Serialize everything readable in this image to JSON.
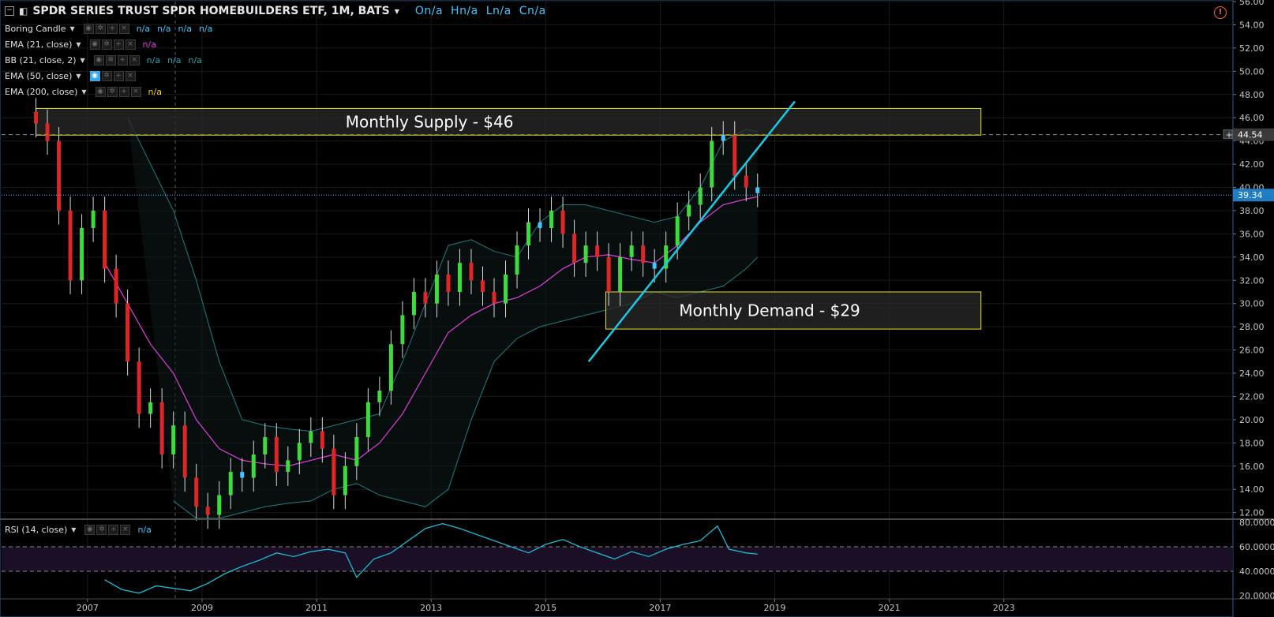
{
  "header": {
    "title": "SPDR SERIES TRUST SPDR HOMEBUILDERS ETF, 1M, BATS",
    "ohlc": [
      "On/a",
      "Hn/a",
      "Ln/a",
      "Cn/a"
    ]
  },
  "indicators": [
    {
      "label": "Boring Candle",
      "values": [
        "n/a",
        "n/a",
        "n/a",
        "n/a"
      ],
      "value_color": "#3fc7ff"
    },
    {
      "label": "EMA (21, close)",
      "values": [
        "n/a"
      ],
      "value_color": "#e040e0"
    },
    {
      "label": "BB (21, close, 2)",
      "values": [
        "n/a",
        "n/a",
        "n/a"
      ],
      "value_color": "#2aa3a8"
    },
    {
      "label": "EMA (50, close)",
      "values": [],
      "value_color": "#ffffff"
    },
    {
      "label": "EMA (200, close)",
      "values": [
        "n/a"
      ],
      "value_color": "#ffd700"
    }
  ],
  "rsi_label": "RSI (14, close)",
  "rsi_value": "n/a",
  "price_labels": {
    "current": "39.34",
    "level": "44.54"
  },
  "colors": {
    "up": "#3ddc3d",
    "down": "#e02525",
    "neutral": "#3fc7ff",
    "ema21": "#e040e0",
    "bb": "#1f7e84",
    "trendline": "#19c9e6",
    "zone_border": "#e6e61a",
    "rsi": "#19c9e6",
    "rsi_band": "#1a0f24"
  },
  "chart_data": {
    "type": "line",
    "title": "SPDR SERIES TRUST SPDR HOMEBUILDERS ETF, 1M, BATS",
    "ylim": [
      11.5,
      56
    ],
    "y_ticks": [
      "56.00",
      "54.00",
      "52.00",
      "50.00",
      "48.00",
      "46.00",
      "44.00",
      "42.00",
      "40.00",
      "38.00",
      "36.00",
      "34.00",
      "32.00",
      "30.00",
      "28.00",
      "26.00",
      "24.00",
      "22.00",
      "20.00",
      "18.00",
      "16.00",
      "14.00",
      "12.00"
    ],
    "x_ticks": [
      "2007",
      "2009",
      "2011",
      "2013",
      "2015",
      "2017",
      "2019",
      "2021",
      "2023"
    ],
    "x_tick_years": [
      2007,
      2009,
      2011,
      2013,
      2015,
      2017,
      2019,
      2021,
      2023
    ],
    "xlim": [
      2005.5,
      2027.0
    ],
    "series": [
      {
        "name": "Price",
        "x": [
          2006.1,
          2006.3,
          2006.5,
          2006.7,
          2006.9,
          2007.1,
          2007.3,
          2007.5,
          2007.7,
          2007.9,
          2008.1,
          2008.3,
          2008.5,
          2008.7,
          2008.9,
          2009.1,
          2009.3,
          2009.5,
          2009.7,
          2009.9,
          2010.1,
          2010.3,
          2010.5,
          2010.7,
          2010.9,
          2011.1,
          2011.3,
          2011.5,
          2011.7,
          2011.9,
          2012.1,
          2012.3,
          2012.5,
          2012.7,
          2012.9,
          2013.1,
          2013.3,
          2013.5,
          2013.7,
          2013.9,
          2014.1,
          2014.3,
          2014.5,
          2014.7,
          2014.9,
          2015.1,
          2015.3,
          2015.5,
          2015.7,
          2015.9,
          2016.1,
          2016.3,
          2016.5,
          2016.7,
          2016.9,
          2017.1,
          2017.3,
          2017.5,
          2017.7,
          2017.9,
          2018.1,
          2018.3,
          2018.5,
          2018.7
        ],
        "values": [
          45.5,
          44.0,
          38.0,
          32.0,
          36.5,
          38.0,
          33.0,
          30.0,
          25.0,
          20.5,
          21.5,
          17.0,
          19.5,
          15.0,
          12.5,
          11.8,
          13.5,
          15.5,
          15.0,
          17.0,
          18.5,
          15.5,
          16.5,
          18.0,
          19.0,
          17.5,
          13.5,
          16.0,
          18.5,
          21.5,
          22.5,
          26.5,
          29.0,
          31.0,
          30.0,
          32.5,
          31.0,
          33.5,
          32.0,
          31.0,
          30.0,
          32.5,
          35.0,
          37.0,
          36.5,
          38.0,
          36.0,
          33.5,
          35.0,
          34.0,
          31.0,
          34.0,
          35.0,
          33.5,
          33.0,
          35.0,
          37.5,
          38.5,
          40.0,
          44.0,
          44.5,
          41.0,
          40.0,
          39.5
        ]
      },
      {
        "name": "EMA (21, close)",
        "x": [
          2007.3,
          2007.7,
          2008.1,
          2008.5,
          2008.9,
          2009.3,
          2009.7,
          2010.1,
          2010.5,
          2010.9,
          2011.3,
          2011.7,
          2012.1,
          2012.5,
          2012.9,
          2013.3,
          2013.7,
          2014.1,
          2014.5,
          2014.9,
          2015.3,
          2015.7,
          2016.1,
          2016.5,
          2016.9,
          2017.3,
          2017.7,
          2018.1,
          2018.5,
          2018.7
        ],
        "values": [
          33.5,
          30.0,
          26.5,
          24.0,
          20.0,
          17.5,
          16.5,
          16.2,
          16.0,
          16.5,
          17.0,
          16.5,
          18.0,
          20.5,
          24.0,
          27.5,
          29.0,
          30.0,
          30.5,
          31.5,
          33.0,
          34.0,
          34.2,
          33.8,
          33.5,
          35.0,
          37.0,
          38.5,
          39.0,
          39.2
        ]
      },
      {
        "name": "BB upper",
        "x": [
          2007.7,
          2008.1,
          2008.5,
          2008.9,
          2009.3,
          2009.7,
          2010.1,
          2010.5,
          2010.9,
          2011.3,
          2011.7,
          2012.1,
          2012.5,
          2012.9,
          2013.3,
          2013.7,
          2014.1,
          2014.5,
          2014.9,
          2015.3,
          2015.7,
          2016.1,
          2016.5,
          2016.9,
          2017.3,
          2017.7,
          2018.1,
          2018.5,
          2018.7
        ],
        "values": [
          46.0,
          42.0,
          38.0,
          32.0,
          25.0,
          20.0,
          19.5,
          19.2,
          19.0,
          19.5,
          20.0,
          20.5,
          25.0,
          30.0,
          35.0,
          35.5,
          34.5,
          34.0,
          37.0,
          38.5,
          38.5,
          38.0,
          37.5,
          37.0,
          37.5,
          40.0,
          44.0,
          45.0,
          44.8
        ]
      },
      {
        "name": "BB lower",
        "x": [
          2008.5,
          2008.9,
          2009.3,
          2009.7,
          2010.1,
          2010.5,
          2010.9,
          2011.3,
          2011.7,
          2012.1,
          2012.5,
          2012.9,
          2013.3,
          2013.7,
          2014.1,
          2014.5,
          2014.9,
          2015.3,
          2015.7,
          2016.1,
          2016.5,
          2016.9,
          2017.3,
          2017.7,
          2018.1,
          2018.5,
          2018.7
        ],
        "values": [
          13.0,
          11.5,
          11.5,
          12.0,
          12.5,
          12.8,
          13.0,
          14.0,
          14.5,
          13.5,
          13.0,
          12.5,
          14.0,
          20.0,
          25.0,
          27.0,
          28.0,
          28.5,
          29.0,
          29.5,
          30.0,
          31.0,
          30.5,
          31.0,
          31.5,
          33.0,
          34.0
        ]
      }
    ],
    "zones": [
      {
        "label": "Monthly Supply - $46",
        "x0": 2006.1,
        "x1": 2022.6,
        "y0": 44.5,
        "y1": 46.8
      },
      {
        "label": "Monthly Demand - $29",
        "x0": 2016.05,
        "x1": 2022.6,
        "y0": 27.8,
        "y1": 31.0
      }
    ],
    "trendline": {
      "x0": 2015.75,
      "y0": 25.0,
      "x1": 2019.35,
      "y1": 47.4
    },
    "rsi": {
      "ylim": [
        18,
        82
      ],
      "ticks": [
        "80.0000",
        "60.0000",
        "40.0000",
        "20.0000"
      ],
      "band": [
        40,
        60
      ],
      "x": [
        2007.3,
        2007.6,
        2007.9,
        2008.2,
        2008.5,
        2008.8,
        2009.1,
        2009.4,
        2009.7,
        2010.0,
        2010.3,
        2010.6,
        2010.9,
        2011.2,
        2011.5,
        2011.7,
        2012.0,
        2012.3,
        2012.6,
        2012.9,
        2013.2,
        2013.5,
        2013.8,
        2014.1,
        2014.4,
        2014.7,
        2015.0,
        2015.3,
        2015.6,
        2015.9,
        2016.2,
        2016.5,
        2016.8,
        2017.1,
        2017.4,
        2017.7,
        2018.0,
        2018.2,
        2018.5,
        2018.7
      ],
      "values": [
        33,
        25,
        22,
        28,
        26,
        24,
        30,
        38,
        44,
        49,
        55,
        52,
        56,
        58,
        55,
        35,
        50,
        55,
        65,
        75,
        79,
        75,
        70,
        65,
        60,
        55,
        62,
        66,
        60,
        55,
        50,
        56,
        52,
        58,
        62,
        65,
        77,
        58,
        55,
        54
      ]
    }
  }
}
